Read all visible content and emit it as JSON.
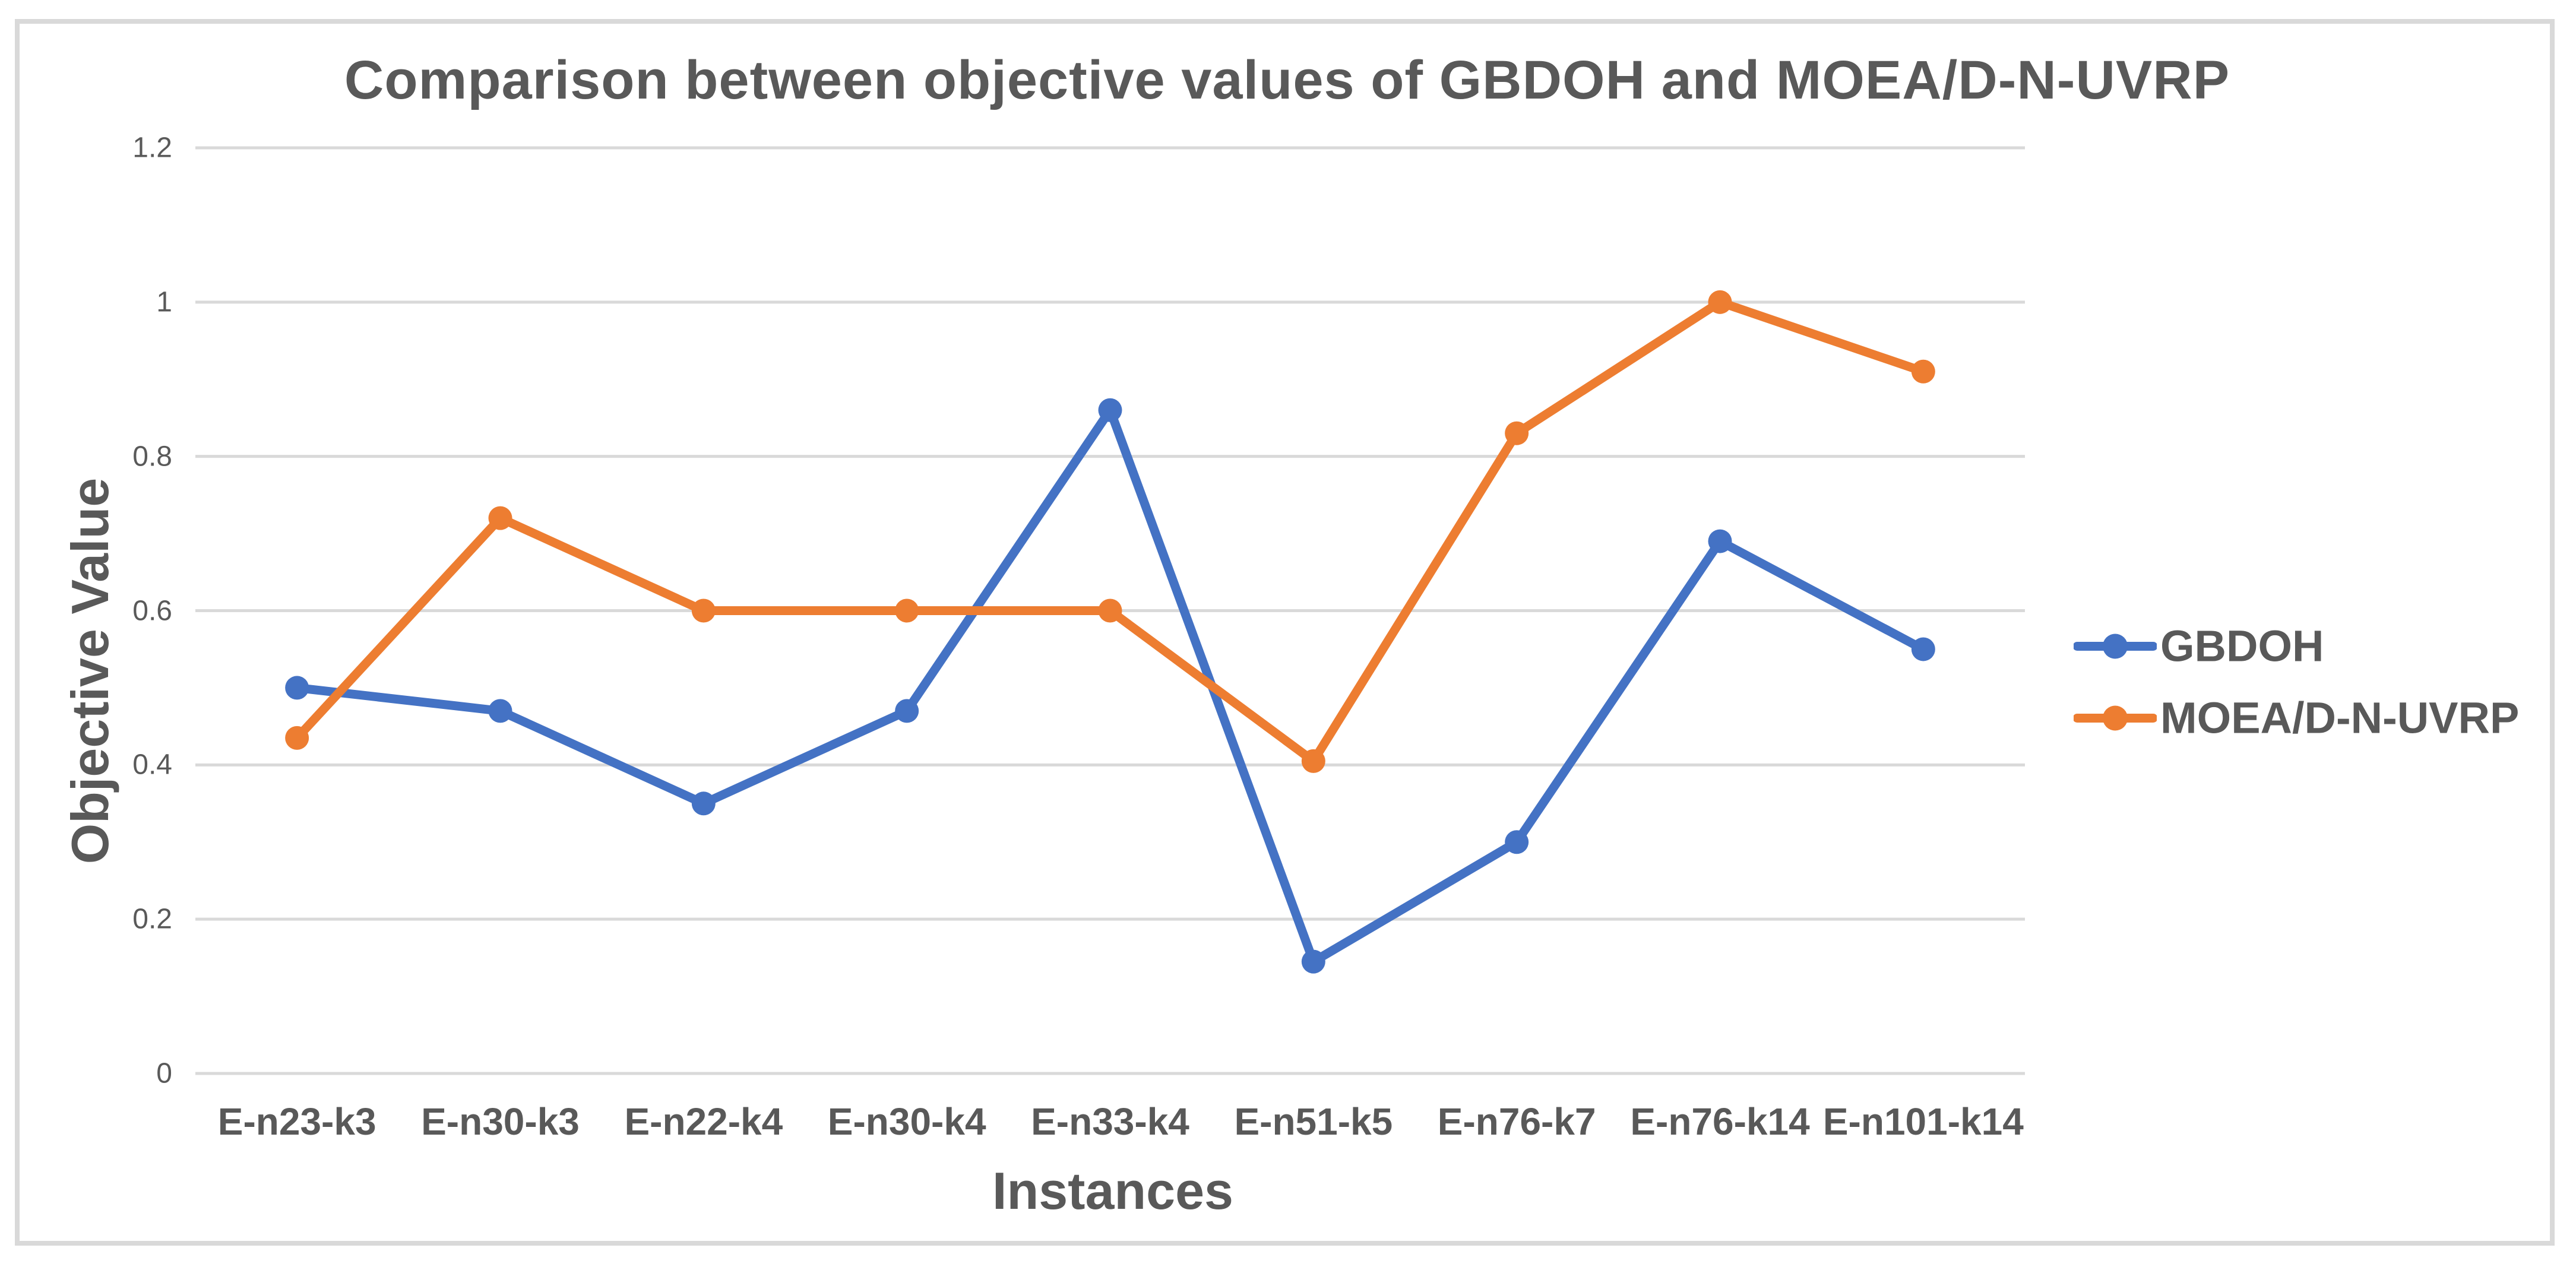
{
  "chart_data": {
    "type": "line",
    "title": "Comparison between objective values of GBDOH and MOEA/D-N-UVRP",
    "xlabel": "Instances",
    "ylabel": "Objective Value",
    "categories": [
      "E-n23-k3",
      "E-n30-k3",
      "E-n22-k4",
      "E-n30-k4",
      "E-n33-k4",
      "E-n51-k5",
      "E-n76-k7",
      "E-n76-k14",
      "E-n101-k14"
    ],
    "series": [
      {
        "name": "GBDOH",
        "color": "#4472C4",
        "values": [
          0.5,
          0.47,
          0.35,
          0.47,
          0.86,
          0.145,
          0.3,
          0.69,
          0.55
        ]
      },
      {
        "name": "MOEA/D-N-UVRP",
        "color": "#ED7D31",
        "values": [
          0.435,
          0.72,
          0.6,
          0.6,
          0.6,
          0.405,
          0.83,
          1.0,
          0.91
        ]
      }
    ],
    "y_ticks": [
      0,
      0.2,
      0.4,
      0.6,
      0.8,
      1,
      1.2
    ],
    "y_tick_labels": [
      "0",
      "0.2",
      "0.4",
      "0.6",
      "0.8",
      "1",
      "1.2"
    ],
    "ylim": [
      0,
      1.2
    ],
    "grid": true,
    "legend_position": "right",
    "marker": "circle"
  },
  "colors": {
    "series_blue": "#4472C4",
    "series_orange": "#ED7D31",
    "text_gray": "#595959",
    "gridline_gray": "#D9D9D9",
    "frame_border": "#D9D9D9"
  }
}
